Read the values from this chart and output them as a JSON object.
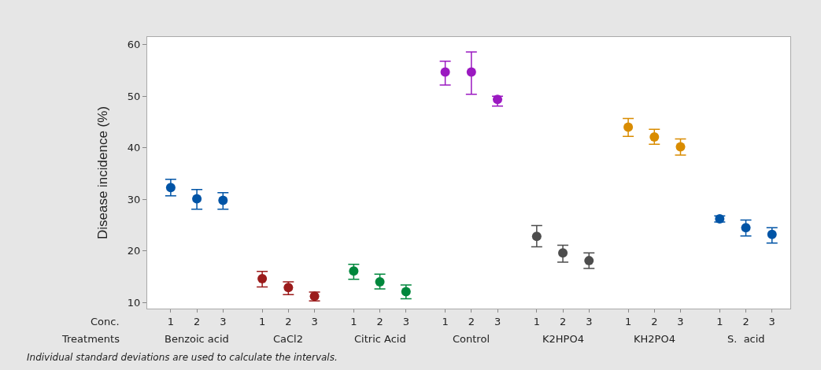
{
  "chart_data": {
    "type": "scatter",
    "ylabel": "Disease incidence (%)",
    "categories": [
      "1",
      "2",
      "3",
      "1",
      "2",
      "3",
      "1",
      "2",
      "3",
      "1",
      "2",
      "3",
      "1",
      "2",
      "3",
      "1",
      "2",
      "3",
      "1",
      "2",
      "3"
    ],
    "values": [
      32.3,
      30.1,
      29.8,
      14.6,
      12.9,
      11.2,
      16.1,
      14.0,
      12.1,
      54.7,
      54.7,
      49.4,
      22.8,
      19.6,
      18.1,
      44.0,
      42.1,
      40.2,
      26.2,
      24.5,
      23.2
    ],
    "errors": [
      [
        30.7,
        33.9
      ],
      [
        28.1,
        31.9
      ],
      [
        28.1,
        31.3
      ],
      [
        13.0,
        16.0
      ],
      [
        11.5,
        14.0
      ],
      [
        10.3,
        12.0
      ],
      [
        14.5,
        17.4
      ],
      [
        12.6,
        15.5
      ],
      [
        10.7,
        13.4
      ],
      [
        52.2,
        56.8
      ],
      [
        50.4,
        58.6
      ],
      [
        48.1,
        50.0
      ],
      [
        20.8,
        24.9
      ],
      [
        17.8,
        21.1
      ],
      [
        16.6,
        19.6
      ],
      [
        42.2,
        45.7
      ],
      [
        40.7,
        43.6
      ],
      [
        38.6,
        41.7
      ],
      [
        25.6,
        26.8
      ],
      [
        22.9,
        26.0
      ],
      [
        21.5,
        24.5
      ]
    ],
    "colors": [
      "#0054a6",
      "#0054a6",
      "#0054a6",
      "#9b1b1b",
      "#9b1b1b",
      "#9b1b1b",
      "#00873c",
      "#00873c",
      "#00873c",
      "#9b19c1",
      "#9b19c1",
      "#9b19c1",
      "#4d4d4d",
      "#4d4d4d",
      "#4d4d4d",
      "#d98c00",
      "#d98c00",
      "#d98c00",
      "#0054a6",
      "#0054a6",
      "#0054a6"
    ],
    "ylim": [
      8.8,
      61.5
    ],
    "yticks": [
      10,
      20,
      30,
      40,
      50,
      60
    ],
    "marker": "circle",
    "grid": false,
    "annotations": [
      "Conc.",
      "Treatments",
      "Benzoic acid",
      "CaCl2",
      "Citric Acid",
      "Control",
      "K2HPO4",
      "KH2PO4",
      "S.  acid",
      "Individual standard deviations are used to calculate the intervals."
    ]
  }
}
